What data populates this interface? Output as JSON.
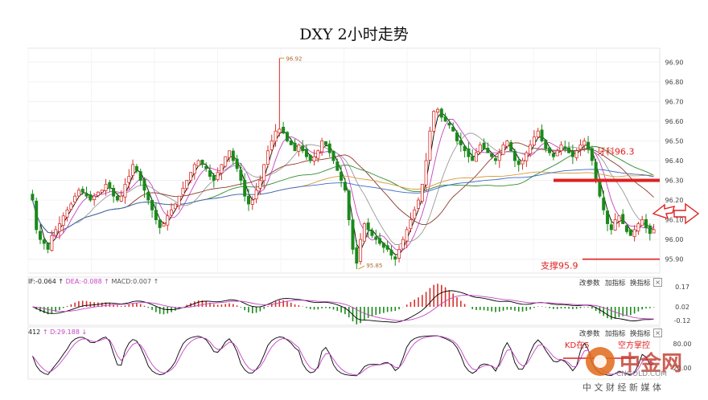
{
  "title": "DXY 2小时走势",
  "chart_data": [
    {
      "type": "candlestick",
      "name": "main",
      "ylim": [
        95.85,
        96.95
      ],
      "y_ticks": [
        "96.90",
        "96.80",
        "96.70",
        "96.60",
        "96.50",
        "96.40",
        "96.30",
        "96.20",
        "96.10",
        "96.00",
        "95.90"
      ],
      "closes": [
        96.2,
        96.05,
        96.0,
        95.98,
        95.95,
        96.02,
        96.05,
        96.08,
        96.12,
        96.15,
        96.18,
        96.22,
        96.25,
        96.24,
        96.22,
        96.2,
        96.22,
        96.24,
        96.25,
        96.28,
        96.26,
        96.22,
        96.2,
        96.22,
        96.28,
        96.32,
        96.38,
        96.35,
        96.3,
        96.25,
        96.2,
        96.15,
        96.1,
        96.06,
        96.08,
        96.12,
        96.15,
        96.18,
        96.22,
        96.26,
        96.3,
        96.34,
        96.38,
        96.4,
        96.38,
        96.36,
        96.32,
        96.3,
        96.34,
        96.38,
        96.42,
        96.45,
        96.4,
        96.36,
        96.3,
        96.22,
        96.18,
        96.2,
        96.25,
        96.3,
        96.38,
        96.45,
        96.5,
        96.55,
        96.56,
        96.54,
        96.5,
        96.48,
        96.45,
        96.48,
        96.45,
        96.42,
        96.4,
        96.42,
        96.45,
        96.5,
        96.48,
        96.44,
        96.4,
        96.35,
        96.3,
        96.25,
        96.1,
        95.95,
        95.88,
        96.0,
        96.08,
        96.05,
        96.02,
        96.0,
        95.98,
        95.96,
        95.95,
        95.92,
        95.9,
        95.95,
        96.0,
        96.05,
        96.1,
        96.15,
        96.2,
        96.28,
        96.4,
        96.55,
        96.65,
        96.66,
        96.62,
        96.6,
        96.58,
        96.55,
        96.5,
        96.48,
        96.45,
        96.42,
        96.4,
        96.44,
        96.48,
        96.46,
        96.44,
        96.42,
        96.4,
        96.44,
        96.48,
        96.5,
        96.45,
        96.4,
        96.38,
        96.4,
        96.44,
        96.48,
        96.52,
        96.55,
        96.5,
        96.46,
        96.44,
        96.42,
        96.45,
        96.48,
        96.46,
        96.44,
        96.42,
        96.45,
        96.48,
        96.5,
        96.46,
        96.4,
        96.3,
        96.22,
        96.15,
        96.08,
        96.05,
        96.1,
        96.12,
        96.08,
        96.04,
        96.02,
        96.05,
        96.08,
        96.1,
        96.06,
        96.03,
        96.05
      ],
      "high_spike": {
        "label": "96.92",
        "value": 96.92
      },
      "low_mark": {
        "label": "95.85",
        "value": 95.85
      },
      "annotations": [
        {
          "text": "牙科96.3",
          "value": 96.3
        },
        {
          "text": "支撑95.9",
          "value": 95.9
        }
      ]
    },
    {
      "type": "macd",
      "name": "MACD",
      "labels": {
        "dif": "IF:-0.064",
        "dea": "DEA:-0.088",
        "macd": "MACD:0.007"
      },
      "y_ticks": [
        "0.17",
        "0.02",
        "-0.12"
      ]
    },
    {
      "type": "kdj",
      "name": "KD",
      "labels": {
        "k": "412",
        "d": "D:29.188"
      },
      "y_ticks": [
        "80.00",
        "20.00"
      ],
      "annotation": "KD在5",
      "annotation2": "空方掌控"
    }
  ],
  "buttons": {
    "change_params": "改参数",
    "add_indicator": "加指标",
    "switch_indicator": "换指标",
    "close": "×"
  },
  "logo": {
    "brand": "中金网",
    "url": "CNGOLD.COM",
    "tagline": "中 文 财 经 新 媒 体"
  },
  "colors": {
    "up": "#d9312b",
    "down": "#1a8a1a",
    "ma1": "#000000",
    "ma2": "#c444c4",
    "ma3": "#9a9a9a",
    "ma4": "#8b3a2a",
    "ma5": "#2e8b2e",
    "ma6": "#d89a3a",
    "ma7": "#3a6ac4",
    "annot": "#e02020"
  }
}
